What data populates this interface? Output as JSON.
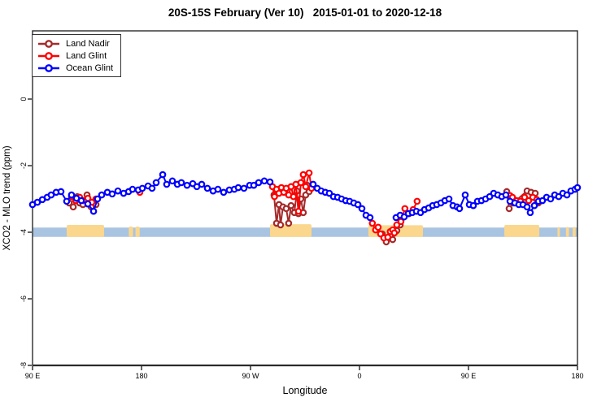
{
  "chart_data": {
    "type": "line",
    "title": "20S-15S February (Ver 10)   2015-01-01 to 2020-12-18",
    "xlabel": "Longitude",
    "ylabel": "XCO2 - MLO trend (ppm)",
    "x_axis": {
      "note": "degrees east of 90E, axis wraps 90E-180-90W-0-90E-180",
      "range": [
        0,
        450
      ],
      "ticks": [
        {
          "pos": 0,
          "label": "90 E"
        },
        {
          "pos": 90,
          "label": "180"
        },
        {
          "pos": 180,
          "label": "90 W"
        },
        {
          "pos": 270,
          "label": "0"
        },
        {
          "pos": 360,
          "label": "90 E"
        },
        {
          "pos": 450,
          "label": "180"
        }
      ]
    },
    "y_axis": {
      "range": [
        -8,
        2.05
      ],
      "ticks": [
        {
          "pos": 0,
          "label": "0"
        },
        {
          "pos": -2,
          "label": "-2"
        },
        {
          "pos": -4,
          "label": "-4"
        },
        {
          "pos": -6,
          "label": "-6"
        },
        {
          "pos": -8,
          "label": "-8"
        }
      ]
    },
    "band": {
      "ocean_color": "#a9c4e1",
      "land_color": "#fbd78d",
      "top": -3.86,
      "bottom": -4.14,
      "land_patches": [
        {
          "from": 28.2,
          "to": 59.1,
          "top": -3.78
        },
        {
          "from": 79.5,
          "to": 83.0,
          "top": -3.83
        },
        {
          "from": 85.0,
          "to": 88.5,
          "top": -3.83
        },
        {
          "from": 196.1,
          "to": 230.4,
          "top": -3.76
        },
        {
          "from": 277.3,
          "to": 322.4,
          "top": -3.79
        },
        {
          "from": 389.6,
          "to": 418.5,
          "top": -3.78
        },
        {
          "from": 433.5,
          "to": 435.5,
          "top": -3.84
        },
        {
          "from": 440.5,
          "to": 443.0,
          "top": -3.84
        },
        {
          "from": 446.0,
          "to": 448.5,
          "top": -3.84
        }
      ]
    },
    "series": [
      {
        "name": "Land Nadir",
        "color": "#A52A2A",
        "segments": [
          [
            [
              30.2,
              -3.12
            ],
            [
              33.6,
              -3.24
            ],
            [
              36.9,
              -2.93
            ],
            [
              38.9,
              -3.12
            ],
            [
              41.6,
              -3.17
            ],
            [
              45.0,
              -2.88
            ],
            [
              48.4,
              -3.24
            ],
            [
              52.4,
              -3.17
            ]
          ],
          [
            [
              199.4,
              -2.88
            ],
            [
              201.5,
              -3.73
            ],
            [
              203.5,
              -3.17
            ],
            [
              204.8,
              -3.78
            ],
            [
              206.8,
              -3.24
            ],
            [
              209.5,
              -3.29
            ],
            [
              211.5,
              -3.73
            ],
            [
              213.5,
              -3.2
            ],
            [
              216.2,
              -3.41
            ],
            [
              218.3,
              -2.76
            ],
            [
              219.6,
              -3.44
            ],
            [
              221.6,
              -3.0
            ],
            [
              223.6,
              -3.41
            ],
            [
              225.6,
              -2.88
            ],
            [
              226.9,
              -2.59
            ],
            [
              228.4,
              -2.78
            ]
          ],
          [
            [
              288.8,
              -4.05
            ],
            [
              292.1,
              -4.29
            ],
            [
              295.4,
              -4.1
            ],
            [
              297.4,
              -4.22
            ],
            [
              300.8,
              -3.95
            ],
            [
              303.6,
              -3.78
            ]
          ],
          [
            [
              391.6,
              -2.78
            ],
            [
              393.6,
              -3.29
            ],
            [
              396.9,
              -3.12
            ],
            [
              408.4,
              -2.76
            ],
            [
              411.7,
              -2.8
            ],
            [
              415.1,
              -2.83
            ],
            [
              417.7,
              -3.12
            ]
          ]
        ]
      },
      {
        "name": "Land Glint",
        "color": "#FF0000",
        "segments": [
          [
            [
              32.2,
              -2.93
            ],
            [
              35.6,
              -3.05
            ],
            [
              38.9,
              -2.95
            ],
            [
              42.3,
              -3.05
            ],
            [
              45.7,
              -2.98
            ],
            [
              49.0,
              -3.1
            ],
            [
              52.4,
              -3.0
            ]
          ],
          [
            [
              88.6,
              -2.8
            ]
          ],
          [
            [
              198.1,
              -2.63
            ],
            [
              199.8,
              -2.93
            ],
            [
              201.5,
              -2.71
            ],
            [
              203.5,
              -2.83
            ],
            [
              205.5,
              -2.66
            ],
            [
              207.5,
              -2.8
            ],
            [
              209.5,
              -2.68
            ],
            [
              211.5,
              -2.88
            ],
            [
              213.5,
              -2.63
            ],
            [
              215.5,
              -2.93
            ],
            [
              217.5,
              -2.56
            ],
            [
              219.6,
              -3.37
            ],
            [
              221.6,
              -2.51
            ],
            [
              223.6,
              -2.27
            ],
            [
              225.6,
              -2.63
            ],
            [
              228.4,
              -2.22
            ],
            [
              230.4,
              -2.68
            ]
          ],
          [
            [
              280.6,
              -3.73
            ],
            [
              283.3,
              -3.93
            ],
            [
              285.4,
              -3.85
            ],
            [
              287.4,
              -4.05
            ],
            [
              290.1,
              -4.17
            ],
            [
              293.4,
              -4.15
            ],
            [
              295.4,
              -3.98
            ],
            [
              297.4,
              -3.93
            ],
            [
              298.8,
              -4.02
            ],
            [
              300.8,
              -3.78
            ],
            [
              304.2,
              -3.68
            ],
            [
              307.5,
              -3.29
            ],
            [
              310.9,
              -3.44
            ],
            [
              314.3,
              -3.32
            ],
            [
              317.6,
              -3.07
            ]
          ],
          [
            [
              394.3,
              -2.9
            ],
            [
              396.3,
              -2.95
            ],
            [
              399.6,
              -3.05
            ],
            [
              402.9,
              -3.07
            ],
            [
              406.3,
              -2.95
            ],
            [
              409.7,
              -3.05
            ],
            [
              413.1,
              -2.95
            ],
            [
              416.4,
              -3.02
            ]
          ]
        ]
      },
      {
        "name": "Ocean Glint",
        "color": "#0000FF",
        "segments": [
          [
            [
              0,
              -3.17
            ],
            [
              4.0,
              -3.1
            ],
            [
              8.1,
              -3.02
            ],
            [
              12.1,
              -2.95
            ],
            [
              15.4,
              -2.88
            ],
            [
              19.5,
              -2.8
            ],
            [
              23.5,
              -2.78
            ],
            [
              28.2,
              -3.07
            ],
            [
              32.2,
              -2.88
            ],
            [
              36.3,
              -2.98
            ],
            [
              40.3,
              -3.05
            ],
            [
              45.7,
              -3.15
            ],
            [
              50.4,
              -3.37
            ],
            [
              53.7,
              -3.0
            ],
            [
              57.1,
              -2.88
            ],
            [
              61.8,
              -2.8
            ],
            [
              65.8,
              -2.85
            ],
            [
              70.5,
              -2.76
            ],
            [
              75.2,
              -2.83
            ],
            [
              79.3,
              -2.78
            ],
            [
              82.6,
              -2.71
            ],
            [
              87.3,
              -2.73
            ],
            [
              90.7,
              -2.68
            ],
            [
              95.4,
              -2.61
            ],
            [
              98.7,
              -2.68
            ],
            [
              102.1,
              -2.51
            ],
            [
              107.5,
              -2.27
            ],
            [
              110.8,
              -2.56
            ],
            [
              115.5,
              -2.46
            ],
            [
              119.6,
              -2.56
            ],
            [
              122.9,
              -2.51
            ],
            [
              127.6,
              -2.59
            ],
            [
              132.3,
              -2.54
            ],
            [
              135.7,
              -2.63
            ],
            [
              139.7,
              -2.56
            ],
            [
              144.4,
              -2.68
            ],
            [
              149.1,
              -2.76
            ],
            [
              153.1,
              -2.71
            ],
            [
              157.8,
              -2.8
            ],
            [
              162.5,
              -2.73
            ],
            [
              166.6,
              -2.71
            ],
            [
              169.9,
              -2.66
            ],
            [
              174.6,
              -2.68
            ],
            [
              179.3,
              -2.59
            ],
            [
              182.7,
              -2.59
            ],
            [
              186.7,
              -2.51
            ],
            [
              191.4,
              -2.46
            ],
            [
              196.1,
              -2.49
            ]
          ],
          [
            [
              231.7,
              -2.56
            ],
            [
              235.1,
              -2.68
            ],
            [
              238.4,
              -2.76
            ],
            [
              241.8,
              -2.8
            ],
            [
              245.1,
              -2.83
            ],
            [
              248.5,
              -2.93
            ],
            [
              251.9,
              -2.95
            ],
            [
              255.2,
              -3.0
            ],
            [
              258.6,
              -3.05
            ],
            [
              261.9,
              -3.07
            ],
            [
              265.3,
              -3.12
            ],
            [
              268.7,
              -3.17
            ],
            [
              272.0,
              -3.29
            ],
            [
              275.4,
              -3.49
            ],
            [
              278.7,
              -3.56
            ]
          ],
          [
            [
              300.2,
              -3.56
            ],
            [
              303.6,
              -3.49
            ],
            [
              306.9,
              -3.54
            ],
            [
              310.3,
              -3.44
            ],
            [
              313.6,
              -3.41
            ],
            [
              317.0,
              -3.37
            ],
            [
              320.4,
              -3.41
            ],
            [
              323.7,
              -3.32
            ],
            [
              327.1,
              -3.27
            ],
            [
              330.4,
              -3.2
            ],
            [
              333.8,
              -3.17
            ],
            [
              337.2,
              -3.12
            ],
            [
              340.5,
              -3.05
            ],
            [
              343.9,
              -3.0
            ],
            [
              347.2,
              -3.2
            ],
            [
              350.6,
              -3.24
            ],
            [
              352.6,
              -3.29
            ],
            [
              357.3,
              -2.88
            ],
            [
              360.7,
              -3.17
            ],
            [
              364.0,
              -3.2
            ],
            [
              367.4,
              -3.07
            ],
            [
              370.7,
              -3.05
            ],
            [
              374.1,
              -3.0
            ],
            [
              377.5,
              -2.93
            ],
            [
              380.8,
              -2.83
            ],
            [
              384.2,
              -2.88
            ],
            [
              387.5,
              -2.93
            ],
            [
              390.9,
              -2.88
            ],
            [
              394.3,
              -3.07
            ],
            [
              398.3,
              -3.12
            ],
            [
              401.6,
              -3.17
            ],
            [
              405.0,
              -3.17
            ],
            [
              408.4,
              -3.24
            ],
            [
              411.0,
              -3.41
            ],
            [
              414.4,
              -3.2
            ],
            [
              417.7,
              -3.07
            ],
            [
              421.1,
              -3.05
            ],
            [
              424.5,
              -2.95
            ],
            [
              427.8,
              -3.0
            ],
            [
              431.2,
              -2.88
            ],
            [
              434.5,
              -2.93
            ],
            [
              437.9,
              -2.83
            ],
            [
              441.3,
              -2.88
            ],
            [
              444.6,
              -2.76
            ],
            [
              448.0,
              -2.71
            ],
            [
              450.0,
              -2.66
            ]
          ]
        ]
      }
    ],
    "legend_position": "top-left",
    "grid": false,
    "frame_color": "#2b2b2b"
  }
}
